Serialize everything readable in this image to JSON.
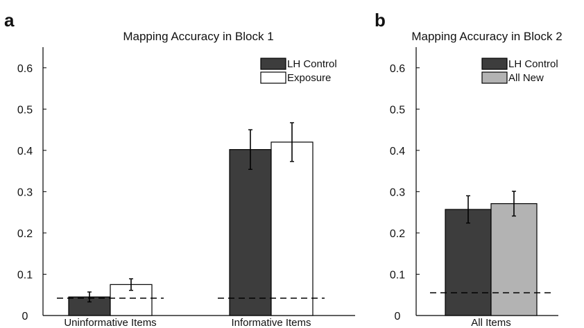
{
  "chart_data": [
    {
      "panel_label": "a",
      "type": "bar",
      "title": "Mapping Accuracy in Block 1",
      "xlabel": "",
      "ylabel": "",
      "ylim": [
        0,
        0.65
      ],
      "yticks": [
        "0",
        "0.1",
        "0.2",
        "0.3",
        "0.4",
        "0.5",
        "0.6"
      ],
      "yticks_values": [
        0,
        0.1,
        0.2,
        0.3,
        0.4,
        0.5,
        0.6
      ],
      "categories": [
        "Uninformative Items",
        "Informative Items"
      ],
      "series": [
        {
          "name": "LH Control",
          "color": "#3d3d3d",
          "values": [
            0.045,
            0.402
          ],
          "errors": [
            0.012,
            0.048
          ]
        },
        {
          "name": "Exposure",
          "color": "#ffffff",
          "values": [
            0.075,
            0.42
          ],
          "errors": [
            0.014,
            0.047
          ]
        }
      ],
      "chance_lines": [
        0.042,
        0.042
      ],
      "legend_position": "top-right",
      "grid": false
    },
    {
      "panel_label": "b",
      "type": "bar",
      "title": "Mapping Accuracy in Block 2",
      "xlabel": "",
      "ylabel": "",
      "ylim": [
        0,
        0.65
      ],
      "yticks": [
        "0",
        "0.1",
        "0.2",
        "0.3",
        "0.4",
        "0.5",
        "0.6"
      ],
      "yticks_values": [
        0,
        0.1,
        0.2,
        0.3,
        0.4,
        0.5,
        0.6
      ],
      "categories": [
        "All Items"
      ],
      "series": [
        {
          "name": "LH Control",
          "color": "#3d3d3d",
          "values": [
            0.257
          ],
          "errors": [
            0.033
          ]
        },
        {
          "name": "All New",
          "color": "#b3b3b3",
          "values": [
            0.271
          ],
          "errors": [
            0.03
          ]
        }
      ],
      "chance_lines": [
        0.055
      ],
      "legend_position": "top-right",
      "grid": false
    }
  ]
}
